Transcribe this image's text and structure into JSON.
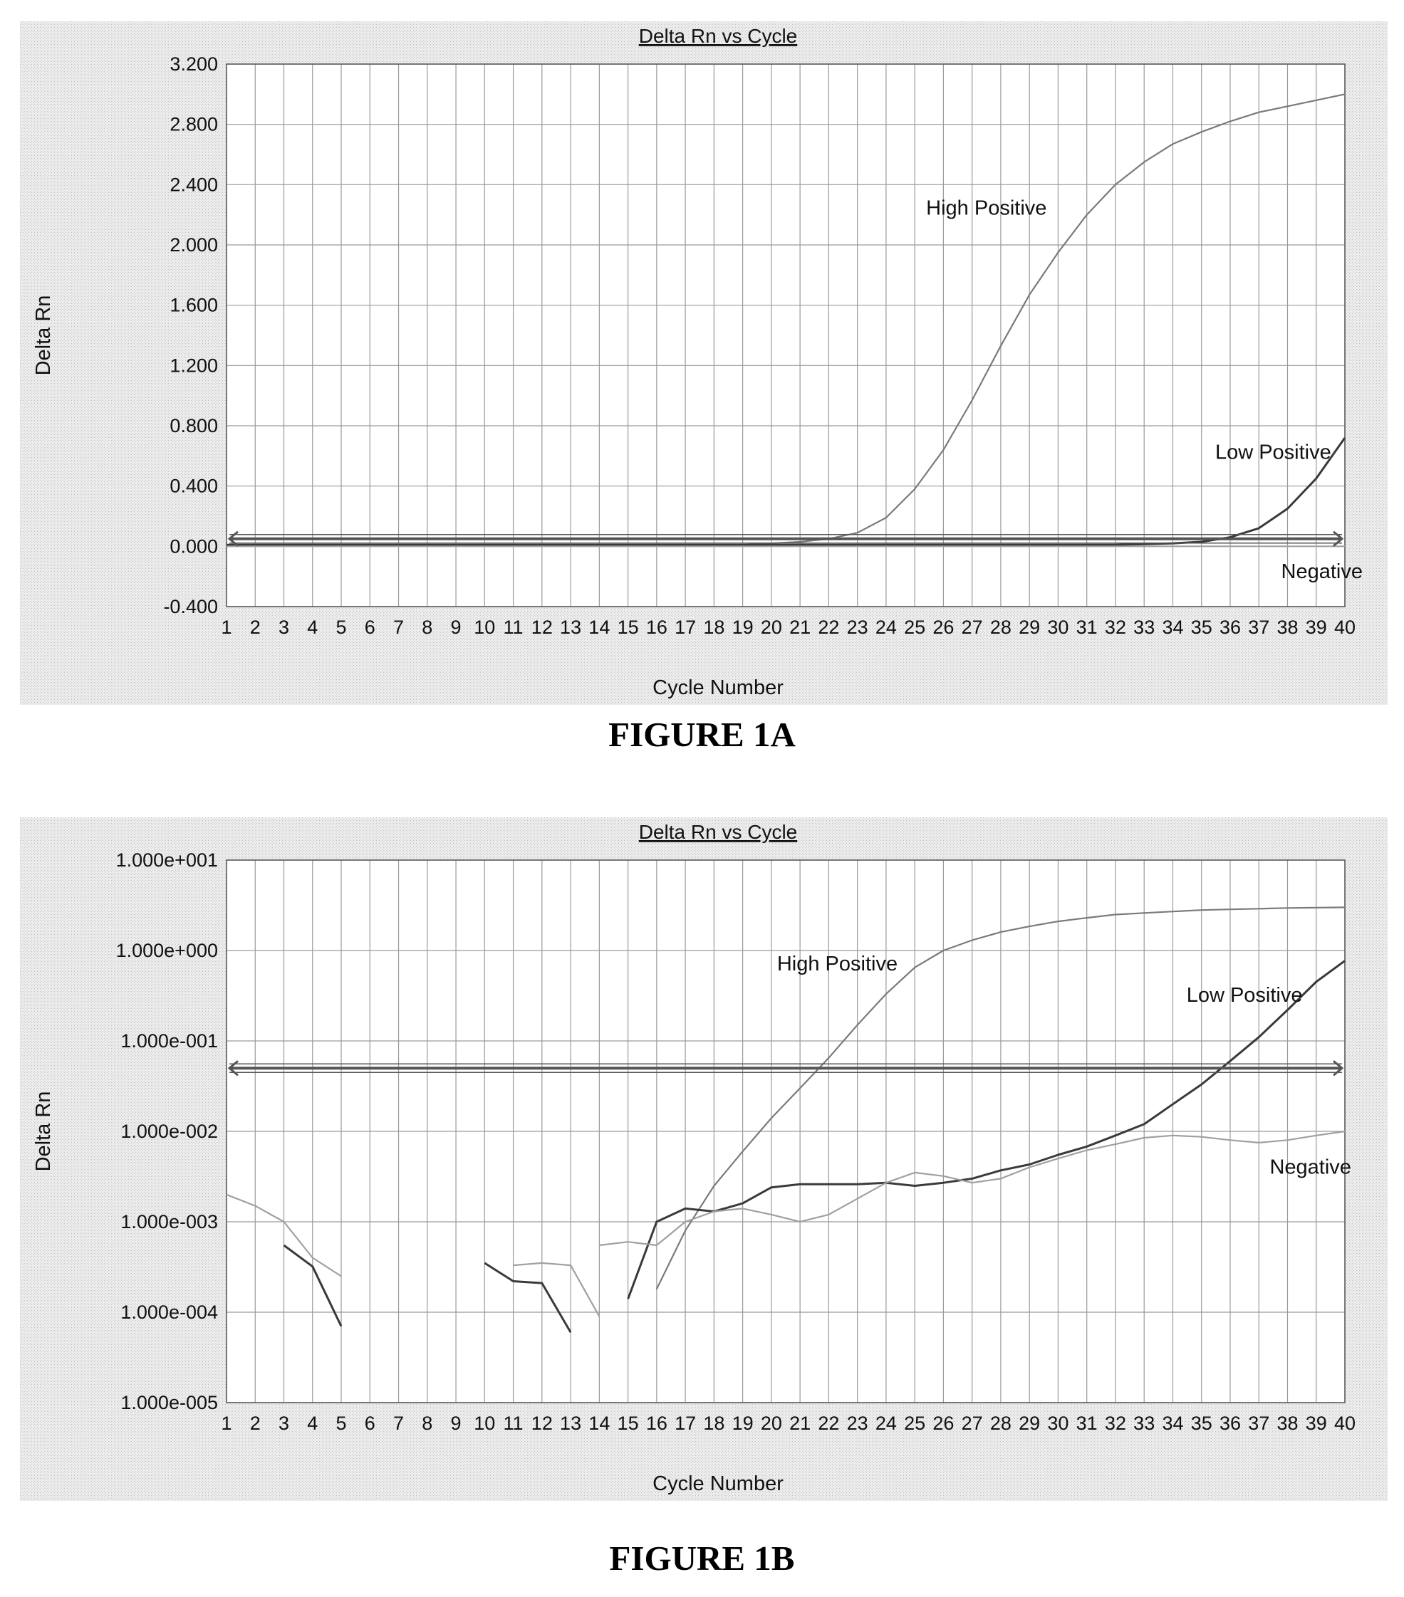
{
  "colors": {
    "panel_bg": "#ececec",
    "grid": "#9a9a9a",
    "high_positive": "#7a7a7a",
    "low_positive": "#3a3a3a",
    "negative": "#a0a0a0",
    "threshold": "#555555"
  },
  "figures": [
    {
      "caption": "FIGURE 1A",
      "chart_data": {
        "type": "line",
        "title": "Delta Rn vs Cycle",
        "xlabel": "Cycle Number",
        "ylabel": "Delta Rn",
        "y_scale": "linear",
        "xlim": [
          1,
          40
        ],
        "ylim": [
          -0.4,
          3.2
        ],
        "grid": true,
        "x_ticks": [
          "1",
          "2",
          "3",
          "4",
          "5",
          "6",
          "7",
          "8",
          "9",
          "10",
          "11",
          "12",
          "13",
          "14",
          "15",
          "16",
          "17",
          "18",
          "19",
          "20",
          "21",
          "22",
          "23",
          "24",
          "25",
          "26",
          "27",
          "28",
          "29",
          "30",
          "31",
          "32",
          "33",
          "34",
          "35",
          "36",
          "37",
          "38",
          "39",
          "40"
        ],
        "y_ticks": [
          3.2,
          2.8,
          2.4,
          2.0,
          1.6,
          1.2,
          0.8,
          0.4,
          0.0,
          -0.4
        ],
        "y_tick_labels": [
          "3.200",
          "2.800",
          "2.400",
          "2.000",
          "1.600",
          "1.200",
          "0.800",
          "0.400",
          "0.000",
          "-0.400"
        ],
        "threshold": 0.05,
        "x": [
          1,
          2,
          3,
          4,
          5,
          6,
          7,
          8,
          9,
          10,
          11,
          12,
          13,
          14,
          15,
          16,
          17,
          18,
          19,
          20,
          21,
          22,
          23,
          24,
          25,
          26,
          27,
          28,
          29,
          30,
          31,
          32,
          33,
          34,
          35,
          36,
          37,
          38,
          39,
          40
        ],
        "series": [
          {
            "color_key": "high_positive",
            "values": [
              0.01,
              0.01,
              0.01,
              0.01,
              0.01,
              0.01,
              0.01,
              0.01,
              0.01,
              0.01,
              0.01,
              0.01,
              0.01,
              0.01,
              0.01,
              0.01,
              0.01,
              0.01,
              0.01,
              0.02,
              0.03,
              0.05,
              0.09,
              0.19,
              0.38,
              0.64,
              0.97,
              1.33,
              1.67,
              1.95,
              2.2,
              2.4,
              2.55,
              2.67,
              2.75,
              2.82,
              2.88,
              2.92,
              2.96,
              3.0
            ]
          },
          {
            "color_key": "low_positive",
            "values": [
              0.01,
              0.01,
              0.01,
              0.01,
              0.01,
              0.01,
              0.01,
              0.01,
              0.01,
              0.01,
              0.01,
              0.01,
              0.01,
              0.01,
              0.01,
              0.01,
              0.01,
              0.01,
              0.01,
              0.01,
              0.01,
              0.01,
              0.01,
              0.01,
              0.01,
              0.01,
              0.01,
              0.01,
              0.01,
              0.01,
              0.01,
              0.01,
              0.015,
              0.02,
              0.03,
              0.06,
              0.12,
              0.25,
              0.45,
              0.72
            ]
          },
          {
            "color_key": "negative",
            "values": [
              0.0,
              0.0,
              0.0,
              0.0,
              0.0,
              0.0,
              0.0,
              0.0,
              0.0,
              0.0,
              0.0,
              0.0,
              0.0,
              0.0,
              0.0,
              0.0,
              0.0,
              0.0,
              0.0,
              0.0,
              0.0,
              0.0,
              0.0,
              0.0,
              0.0,
              0.0,
              0.0,
              0.0,
              0.0,
              0.0,
              0.0,
              0.0,
              0.0,
              0.0,
              0.0,
              0.0,
              0.0,
              0.0,
              0.0,
              0.0
            ]
          }
        ],
        "annotations": [
          {
            "text": "High Positive",
            "x": 27.5,
            "y": 2.2
          },
          {
            "text": "Low Positive",
            "x": 37.5,
            "y": 0.58
          },
          {
            "text": "Negative",
            "x": 39.2,
            "y": -0.21
          }
        ]
      }
    },
    {
      "caption": "FIGURE 1B",
      "chart_data": {
        "type": "line",
        "title": "Delta Rn vs Cycle",
        "xlabel": "Cycle Number",
        "ylabel": "Delta Rn",
        "y_scale": "log",
        "xlim": [
          1,
          40
        ],
        "ylim": [
          1e-05,
          10
        ],
        "grid": true,
        "x_ticks": [
          "1",
          "2",
          "3",
          "4",
          "5",
          "6",
          "7",
          "8",
          "9",
          "10",
          "11",
          "12",
          "13",
          "14",
          "15",
          "16",
          "17",
          "18",
          "19",
          "20",
          "21",
          "22",
          "23",
          "24",
          "25",
          "26",
          "27",
          "28",
          "29",
          "30",
          "31",
          "32",
          "33",
          "34",
          "35",
          "36",
          "37",
          "38",
          "39",
          "40"
        ],
        "y_ticks": [
          10,
          1,
          0.1,
          0.01,
          0.001,
          0.0001,
          1e-05
        ],
        "y_tick_labels": [
          "1.000e+001",
          "1.000e+000",
          "1.000e-001",
          "1.000e-002",
          "1.000e-003",
          "1.000e-004",
          "1.000e-005"
        ],
        "threshold": 0.05,
        "series": [
          {
            "color_key": "high_positive",
            "x": [
              16,
              17,
              18,
              19,
              20,
              21,
              22,
              23,
              24,
              25,
              26,
              27,
              28,
              29,
              30,
              31,
              32,
              33,
              34,
              35,
              36,
              37,
              38,
              39,
              40
            ],
            "values": [
              0.00018,
              0.0008,
              0.0025,
              0.006,
              0.014,
              0.03,
              0.065,
              0.15,
              0.33,
              0.65,
              1.0,
              1.3,
              1.6,
              1.85,
              2.1,
              2.3,
              2.5,
              2.6,
              2.7,
              2.8,
              2.85,
              2.9,
              2.95,
              2.98,
              3.0
            ]
          },
          {
            "color_key": "low_positive",
            "x": [
              3,
              4,
              5
            ],
            "values": [
              0.00055,
              0.00032,
              7e-05
            ]
          },
          {
            "color_key": "low_positive",
            "x": [
              10,
              11,
              12,
              13
            ],
            "values": [
              0.00035,
              0.00022,
              0.00021,
              6e-05
            ]
          },
          {
            "color_key": "low_positive",
            "x": [
              15,
              16,
              17,
              18,
              19,
              20,
              21,
              22,
              23,
              24,
              25,
              26,
              27,
              28,
              29,
              30,
              31,
              32,
              33,
              34,
              35,
              36,
              37,
              38,
              39,
              40
            ],
            "values": [
              0.00014,
              0.001,
              0.0014,
              0.0013,
              0.0016,
              0.0024,
              0.0026,
              0.0026,
              0.0026,
              0.0027,
              0.0025,
              0.0027,
              0.003,
              0.0037,
              0.0043,
              0.0055,
              0.0068,
              0.009,
              0.012,
              0.02,
              0.033,
              0.06,
              0.11,
              0.22,
              0.45,
              0.77
            ]
          },
          {
            "color_key": "negative",
            "x": [
              1,
              2,
              3,
              4,
              5
            ],
            "values": [
              0.002,
              0.0015,
              0.001,
              0.0004,
              0.00025
            ]
          },
          {
            "color_key": "negative",
            "x": [
              11,
              12,
              13,
              14
            ],
            "values": [
              0.00033,
              0.00035,
              0.00033,
              9e-05
            ]
          },
          {
            "color_key": "negative",
            "x": [
              14,
              15,
              16,
              17,
              18,
              19,
              20,
              21,
              22,
              23,
              24,
              25,
              26,
              27,
              28,
              29,
              30,
              31,
              32,
              33,
              34,
              35,
              36,
              37,
              38,
              39,
              40
            ],
            "values": [
              0.00055,
              0.0006,
              0.00055,
              0.001,
              0.0013,
              0.0014,
              0.0012,
              0.001,
              0.0012,
              0.0018,
              0.0027,
              0.0035,
              0.0032,
              0.0027,
              0.003,
              0.004,
              0.005,
              0.0062,
              0.0072,
              0.0085,
              0.009,
              0.0087,
              0.008,
              0.0075,
              0.008,
              0.009,
              0.01
            ]
          }
        ],
        "annotations": [
          {
            "text": "High Positive",
            "x": 22.3,
            "y": 0.6
          },
          {
            "text": "Low Positive",
            "x": 36.5,
            "y": 0.27
          },
          {
            "text": "Negative",
            "x": 38.8,
            "y": 0.0034
          }
        ]
      }
    }
  ]
}
